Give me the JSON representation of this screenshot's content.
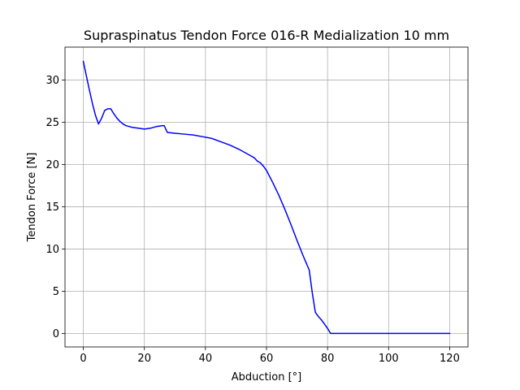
{
  "chart_data": {
    "type": "line",
    "title": "Supraspinatus Tendon Force 016-R Medialization 10 mm",
    "xlabel": "Abduction [°]",
    "ylabel": "Tendon Force [N]",
    "xlim": [
      -6,
      126
    ],
    "ylim": [
      -1.6,
      33.9
    ],
    "xticks": [
      0,
      20,
      40,
      60,
      80,
      100,
      120
    ],
    "yticks": [
      0,
      5,
      10,
      15,
      20,
      25,
      30
    ],
    "grid": true,
    "series": [
      {
        "color": "#0000ff",
        "x": [
          0,
          1,
          2,
          3,
          4,
          5,
          6,
          7,
          8,
          9,
          10,
          11,
          12,
          13,
          14,
          15,
          16,
          18,
          20,
          22,
          24,
          26,
          26.5,
          27.5,
          30,
          33,
          36,
          39,
          42,
          45,
          48,
          51,
          54,
          56,
          57,
          58,
          59,
          60,
          62,
          64,
          66,
          68,
          70,
          72,
          74,
          75,
          76,
          77,
          78,
          79,
          80,
          81,
          82,
          85,
          90,
          95,
          100,
          105,
          110,
          115,
          120
        ],
        "y": [
          32.2,
          30.5,
          28.8,
          27.2,
          25.8,
          24.8,
          25.5,
          26.4,
          26.6,
          26.6,
          26.0,
          25.5,
          25.1,
          24.8,
          24.6,
          24.5,
          24.4,
          24.3,
          24.2,
          24.3,
          24.5,
          24.6,
          24.6,
          23.8,
          23.7,
          23.6,
          23.5,
          23.3,
          23.1,
          22.7,
          22.3,
          21.8,
          21.2,
          20.8,
          20.4,
          20.2,
          19.8,
          19.3,
          17.9,
          16.4,
          14.7,
          12.9,
          11.0,
          9.2,
          7.5,
          4.8,
          2.5,
          2.0,
          1.6,
          1.1,
          0.6,
          0,
          0,
          0,
          0,
          0,
          0,
          0,
          0,
          0,
          0
        ]
      }
    ]
  }
}
